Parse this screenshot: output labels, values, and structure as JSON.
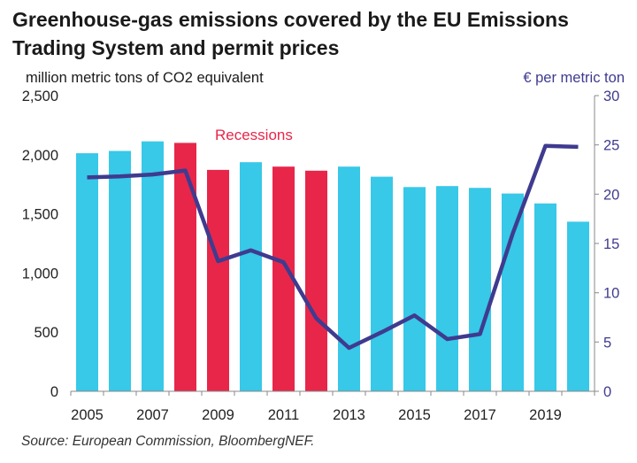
{
  "chart_data": {
    "type": "bar+line",
    "title": "Greenhouse-gas emissions covered by the EU Emissions Trading System and permit prices",
    "y_left_label": "million metric tons of CO2 equivalent",
    "y_right_label": "€ per metric ton",
    "years": [
      2005,
      2006,
      2007,
      2008,
      2009,
      2010,
      2011,
      2012,
      2013,
      2014,
      2015,
      2016,
      2017,
      2018,
      2019,
      2020
    ],
    "x_tick_labels": [
      "2005",
      "2007",
      "2009",
      "2011",
      "2013",
      "2015",
      "2017",
      "2019"
    ],
    "emissions": [
      2013,
      2032,
      2113,
      2100,
      1872,
      1937,
      1900,
      1865,
      1900,
      1814,
      1727,
      1735,
      1720,
      1672,
      1588,
      1434
    ],
    "recession_years": [
      2008,
      2009,
      2011,
      2012
    ],
    "price": [
      21.7,
      21.8,
      22.0,
      22.4,
      13.2,
      14.3,
      13.1,
      7.4,
      4.4,
      6.0,
      7.7,
      5.3,
      5.8,
      16.0,
      24.9,
      24.8
    ],
    "y_left_ticks": [
      "0",
      "500",
      "1,000",
      "1,500",
      "2,000",
      "2,500"
    ],
    "y_right_ticks": [
      "0",
      "5",
      "10",
      "15",
      "20",
      "25",
      "30"
    ],
    "y_left_range": [
      0,
      2500
    ],
    "y_right_range": [
      0,
      30
    ],
    "annotation": "Recessions",
    "colors": {
      "bar": "#38c8e8",
      "recession_bar": "#e8264a",
      "price_line": "#3f3b8f",
      "annotation": "#e8264a",
      "right_axis_label": "#3f3b8f",
      "axis": "#888888"
    }
  },
  "source": "Source: European Commission, BloombergNEF."
}
